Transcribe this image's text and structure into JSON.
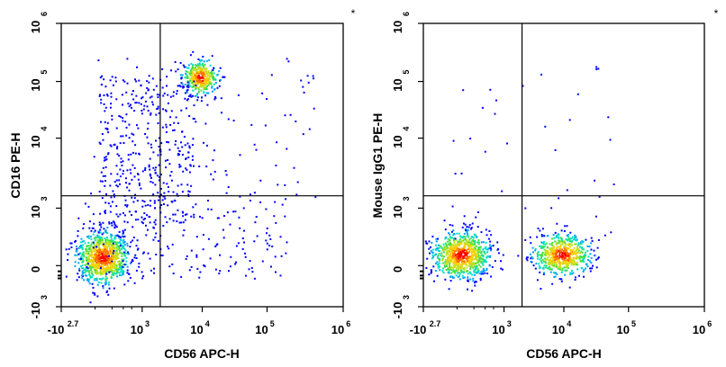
{
  "chart_data": [
    {
      "type": "scatter",
      "subtype": "flow-cytometry-density-plot",
      "xlabel": "CD56 APC-H",
      "ylabel": "CD16 PE-H",
      "annotation": "*",
      "x_ticks": [
        {
          "base": "-10",
          "exp": "2.7"
        },
        {
          "base": "10",
          "exp": "3"
        },
        {
          "base": "10",
          "exp": "4"
        },
        {
          "base": "10",
          "exp": "5"
        },
        {
          "base": "10",
          "exp": "6"
        }
      ],
      "y_ticks": [
        {
          "base": "-10",
          "exp": "3"
        },
        {
          "base": "0",
          "exp": ""
        },
        {
          "base": "10",
          "exp": "3"
        },
        {
          "base": "10",
          "exp": "4"
        },
        {
          "base": "10",
          "exp": "5"
        },
        {
          "base": "10",
          "exp": "6"
        }
      ],
      "quadrant_gate": {
        "x": 2000,
        "y": 1500
      },
      "populations": [
        {
          "name": "CD56-dim/neg CD16- cluster",
          "center_x": 400,
          "center_y": 150,
          "relative_density": "highest",
          "approx_fraction": 0.52
        },
        {
          "name": "CD56+ CD16+ NK cluster",
          "center_x": 9000,
          "center_y": 120000,
          "relative_density": "high",
          "approx_fraction": 0.22
        },
        {
          "name": "scattered events",
          "relative_density": "low",
          "approx_fraction": 0.26
        }
      ]
    },
    {
      "type": "scatter",
      "subtype": "flow-cytometry-density-plot",
      "xlabel": "CD56 APC-H",
      "ylabel": "Mouse IgG1 PE-H",
      "annotation": "*",
      "x_ticks": [
        {
          "base": "-10",
          "exp": "2.7"
        },
        {
          "base": "10",
          "exp": "3"
        },
        {
          "base": "10",
          "exp": "4"
        },
        {
          "base": "10",
          "exp": "5"
        },
        {
          "base": "10",
          "exp": "6"
        }
      ],
      "y_ticks": [
        {
          "base": "-10",
          "exp": "3"
        },
        {
          "base": "0",
          "exp": ""
        },
        {
          "base": "10",
          "exp": "3"
        },
        {
          "base": "10",
          "exp": "4"
        },
        {
          "base": "10",
          "exp": "5"
        },
        {
          "base": "10",
          "exp": "6"
        }
      ],
      "quadrant_gate": {
        "x": 2000,
        "y": 1500
      },
      "populations": [
        {
          "name": "CD56- isotype cluster",
          "center_x": 350,
          "center_y": 200,
          "relative_density": "highest",
          "approx_fraction": 0.55
        },
        {
          "name": "CD56+ isotype cluster",
          "center_x": 9000,
          "center_y": 200,
          "relative_density": "high",
          "approx_fraction": 0.4
        },
        {
          "name": "scattered events",
          "relative_density": "very low",
          "approx_fraction": 0.05
        }
      ]
    }
  ],
  "colors": {
    "density_scale": [
      "#0000ff",
      "#00a0ff",
      "#00e0c0",
      "#40e040",
      "#c0e020",
      "#ffd000",
      "#ff7000",
      "#ff0000"
    ],
    "axis": "#000000",
    "gate": "#000000"
  }
}
